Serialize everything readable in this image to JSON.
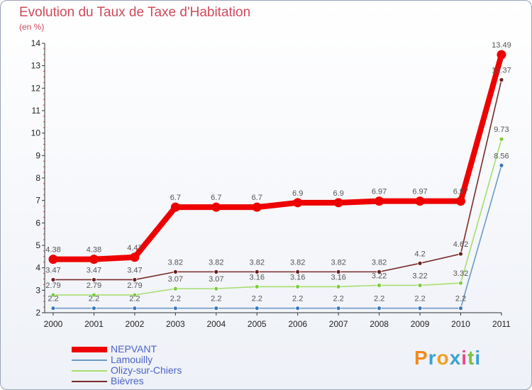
{
  "chart_data": {
    "type": "line",
    "title": "Evolution du Taux de Taxe d'Habitation",
    "subtitle": "(en %)",
    "xlabel": "",
    "ylabel": "",
    "categories": [
      "2000",
      "2001",
      "2002",
      "2003",
      "2004",
      "2005",
      "2006",
      "2007",
      "2008",
      "2009",
      "2010",
      "2011"
    ],
    "ylim": [
      2,
      14
    ],
    "yticks": [
      "2",
      "3",
      "4",
      "5",
      "6",
      "7",
      "8",
      "9",
      "10",
      "11",
      "12",
      "13",
      "14"
    ],
    "grid": false,
    "legend_position": "bottom-left",
    "series": [
      {
        "name": "Lamouilly",
        "color": "#6d9ac4",
        "marker": "#3b78b8",
        "values": [
          2.2,
          2.2,
          2.2,
          2.2,
          2.2,
          2.2,
          2.2,
          2.2,
          2.2,
          2.2,
          2.2,
          8.56
        ],
        "labels": [
          "2.2",
          "2.2",
          "2.2",
          "2.2",
          "2.2",
          "2.2",
          "2.2",
          "2.2",
          "2.2",
          "2.2",
          "2.2",
          "8.56"
        ]
      },
      {
        "name": "Olizy-sur-Chiers",
        "color": "#a6de6e",
        "marker": "#7ccc3e",
        "values": [
          2.79,
          2.79,
          2.79,
          3.07,
          3.07,
          3.16,
          3.16,
          3.16,
          3.22,
          3.22,
          3.32,
          9.73
        ],
        "labels": [
          "2.79",
          "2.79",
          "2.79",
          "3.07",
          "3.07",
          "3.16",
          "3.16",
          "3.16",
          "3.22",
          "3.22",
          "3.32",
          "9.73"
        ]
      },
      {
        "name": "Bièvres",
        "color": "#7a2a2a",
        "marker": "#6b1f1f",
        "values": [
          3.47,
          3.47,
          3.47,
          3.82,
          3.82,
          3.82,
          3.82,
          3.82,
          3.82,
          4.2,
          4.62,
          12.37
        ],
        "labels": [
          "3.47",
          "3.47",
          "3.47",
          "3.82",
          "3.82",
          "3.82",
          "3.82",
          "3.82",
          "3.82",
          "4.2",
          "4.62",
          "12.37"
        ]
      },
      {
        "name": "NEPVANT",
        "color": "#ee0000",
        "marker": "#ee0000",
        "values": [
          4.38,
          4.38,
          4.47,
          6.7,
          6.7,
          6.7,
          6.9,
          6.9,
          6.97,
          6.97,
          6.97,
          13.49
        ],
        "labels": [
          "4.38",
          "4.38",
          "4.47",
          "6.7",
          "6.7",
          "6.7",
          "6.9",
          "6.9",
          "6.97",
          "6.97",
          "6.97",
          "13.49"
        ]
      }
    ]
  },
  "legend": [
    {
      "name": "NEPVANT",
      "color": "#ee0000",
      "thickness": 8
    },
    {
      "name": "Lamouilly",
      "color": "#6d9ac4",
      "thickness": 2
    },
    {
      "name": "Olizy-sur-Chiers",
      "color": "#a6de6e",
      "thickness": 2
    },
    {
      "name": "Bièvres",
      "color": "#7a2a2a",
      "thickness": 2
    }
  ],
  "logo": {
    "text": "Proxiti",
    "colors": [
      "#f08a1c",
      "#3aa0d8",
      "#f0a020",
      "#3aa0d8",
      "#e84b8a",
      "#7ac142",
      "#3aa0d8"
    ]
  }
}
